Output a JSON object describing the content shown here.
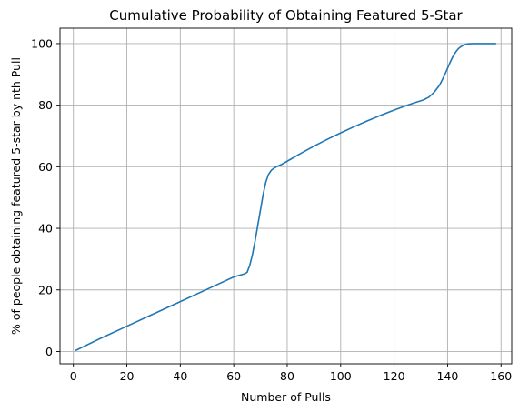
{
  "chart_data": {
    "type": "line",
    "title": "Cumulative Probability of Obtaining Featured 5-Star",
    "xlabel": "Number of Pulls",
    "ylabel": "% of people obtaining featured 5-star by nth Pull",
    "xlim": [
      -5,
      164
    ],
    "ylim": [
      -4,
      105
    ],
    "xticks": [
      0,
      20,
      40,
      60,
      80,
      100,
      120,
      140,
      160
    ],
    "yticks": [
      0,
      20,
      40,
      60,
      80,
      100
    ],
    "grid": true,
    "colors": {
      "line": "#1f77b4",
      "grid": "#b0b0b0"
    },
    "series": [
      {
        "x": [
          1,
          10,
          20,
          30,
          40,
          50,
          60,
          64,
          65,
          66,
          67,
          68,
          69,
          70,
          71,
          72,
          73,
          74,
          75,
          76,
          77,
          78,
          80,
          85,
          90,
          95,
          100,
          105,
          110,
          115,
          120,
          125,
          128,
          131,
          133,
          135,
          137,
          138,
          139,
          140,
          141,
          142,
          143,
          144,
          145,
          146,
          147,
          148,
          150,
          155,
          158
        ],
        "y": [
          0.4,
          4.2,
          8.2,
          12.2,
          16.2,
          20.2,
          24.2,
          25.2,
          25.7,
          28.0,
          31.5,
          36.0,
          41.0,
          46.0,
          51.0,
          55.0,
          57.5,
          58.8,
          59.5,
          60.0,
          60.4,
          60.8,
          61.8,
          64.3,
          66.7,
          68.9,
          71.0,
          73.0,
          74.9,
          76.7,
          78.4,
          80.0,
          80.9,
          81.7,
          82.6,
          84.2,
          86.5,
          88.2,
          90.0,
          92.0,
          94.0,
          95.8,
          97.2,
          98.3,
          99.0,
          99.5,
          99.8,
          99.95,
          100.0,
          100.0,
          100.0
        ]
      }
    ]
  }
}
